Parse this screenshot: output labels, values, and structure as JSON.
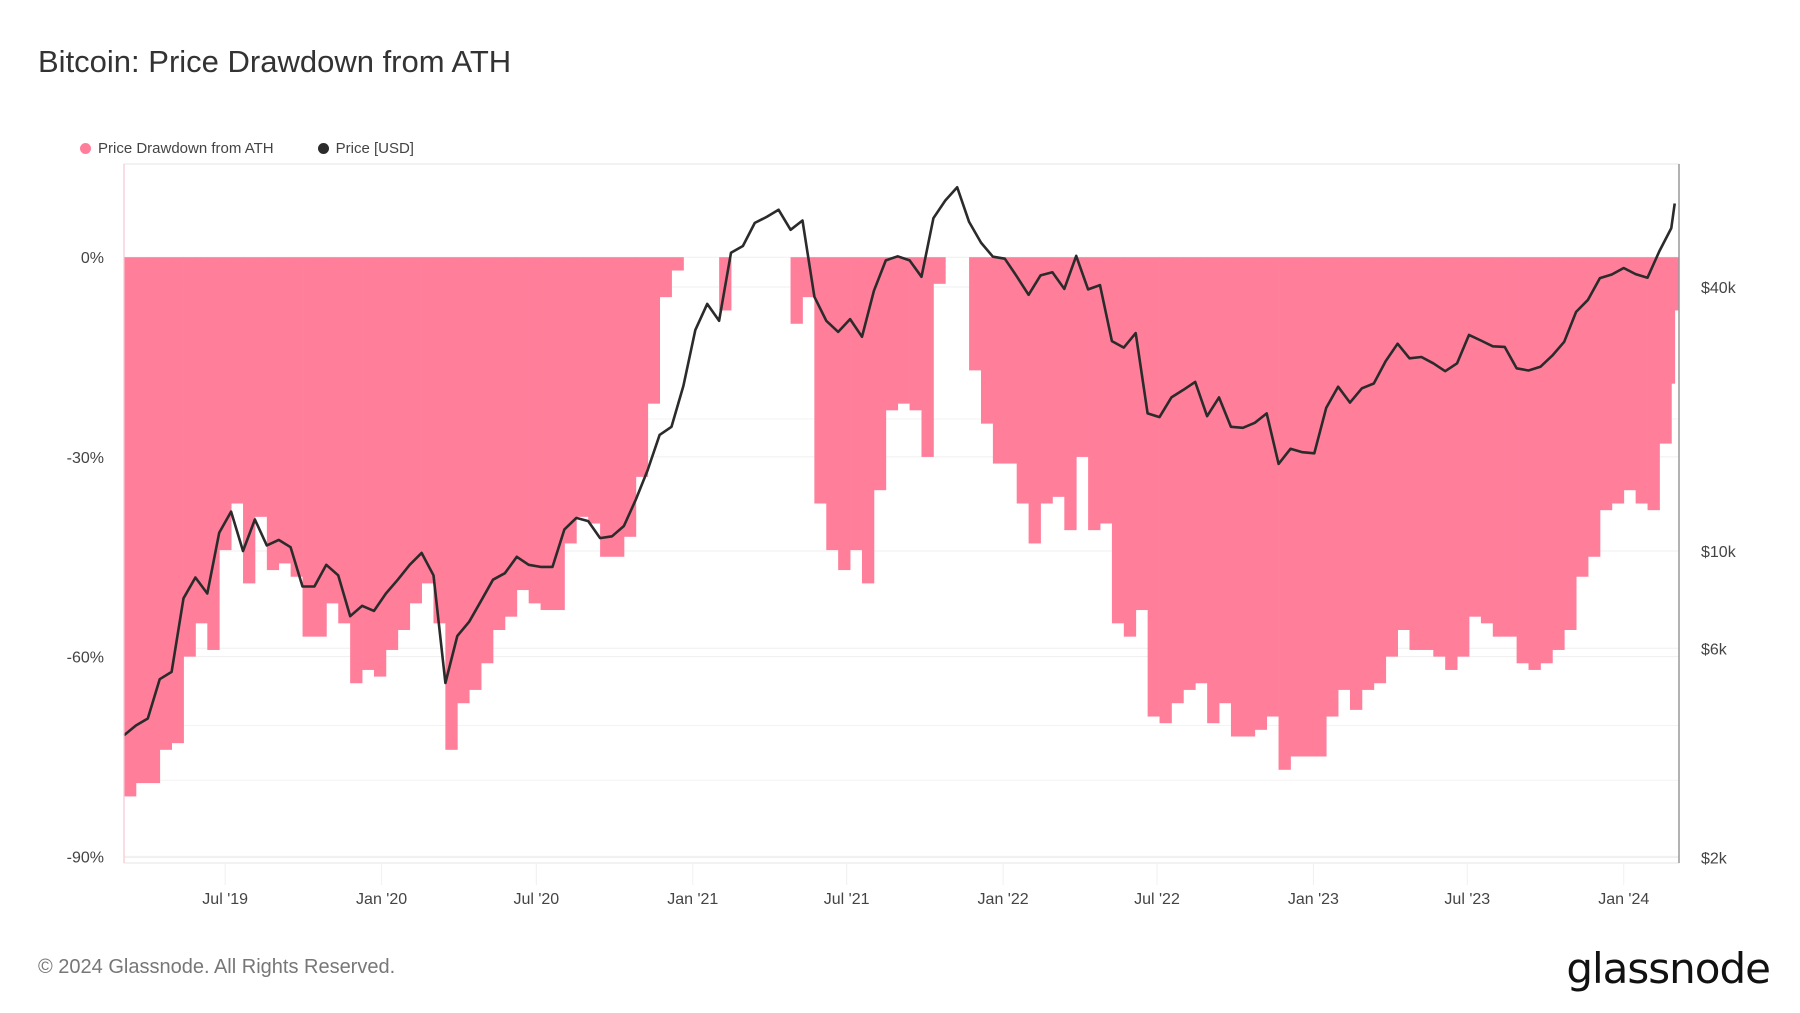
{
  "chart_data": {
    "type": "bar+line",
    "title": "Bitcoin: Price Drawdown from ATH",
    "legend": [
      {
        "name": "Price Drawdown from ATH",
        "color": "#ff7f9b"
      },
      {
        "name": "Price [USD]",
        "color": "#2b2b2b"
      }
    ],
    "legend_position": "top-left",
    "grid": true,
    "xlim": [
      "2019-03-04",
      "2024-03-06"
    ],
    "x_ticks": [
      {
        "date": "2019-07-01",
        "label": "Jul '19"
      },
      {
        "date": "2020-01-01",
        "label": "Jan '20"
      },
      {
        "date": "2020-07-01",
        "label": "Jul '20"
      },
      {
        "date": "2021-01-01",
        "label": "Jan '21"
      },
      {
        "date": "2021-07-01",
        "label": "Jul '21"
      },
      {
        "date": "2022-01-01",
        "label": "Jan '22"
      },
      {
        "date": "2022-07-01",
        "label": "Jul '22"
      },
      {
        "date": "2023-01-01",
        "label": "Jan '23"
      },
      {
        "date": "2023-07-01",
        "label": "Jul '23"
      },
      {
        "date": "2024-01-01",
        "label": "Jan '24"
      }
    ],
    "y_left": {
      "ylim": [
        -91,
        14
      ],
      "ticks": [
        {
          "value": 0,
          "label": "0%"
        },
        {
          "value": -30,
          "label": "-30%"
        },
        {
          "value": -60,
          "label": "-60%"
        },
        {
          "value": -90,
          "label": "-90%"
        }
      ]
    },
    "y_right": {
      "scale": "log",
      "ylim": [
        1943,
        76300
      ],
      "ticks": [
        {
          "value": 40000,
          "label": "$40k"
        },
        {
          "value": 10000,
          "label": "$10k"
        },
        {
          "value": 6000,
          "label": "$6k"
        },
        {
          "value": 2000,
          "label": "$2k"
        }
      ]
    },
    "dates": [
      "2019-03-04",
      "2019-03-18",
      "2019-04-01",
      "2019-04-15",
      "2019-04-29",
      "2019-05-13",
      "2019-05-27",
      "2019-06-10",
      "2019-06-24",
      "2019-07-08",
      "2019-07-22",
      "2019-08-05",
      "2019-08-19",
      "2019-09-02",
      "2019-09-16",
      "2019-09-30",
      "2019-10-14",
      "2019-10-28",
      "2019-11-11",
      "2019-11-25",
      "2019-12-09",
      "2019-12-23",
      "2020-01-06",
      "2020-01-20",
      "2020-02-03",
      "2020-02-17",
      "2020-03-02",
      "2020-03-16",
      "2020-03-30",
      "2020-04-13",
      "2020-04-27",
      "2020-05-11",
      "2020-05-25",
      "2020-06-08",
      "2020-06-22",
      "2020-07-06",
      "2020-07-20",
      "2020-08-03",
      "2020-08-17",
      "2020-08-31",
      "2020-09-14",
      "2020-09-28",
      "2020-10-12",
      "2020-10-26",
      "2020-11-09",
      "2020-11-23",
      "2020-12-07",
      "2020-12-21",
      "2021-01-04",
      "2021-01-18",
      "2021-02-01",
      "2021-02-15",
      "2021-03-01",
      "2021-03-15",
      "2021-03-29",
      "2021-04-12",
      "2021-04-26",
      "2021-05-10",
      "2021-05-24",
      "2021-06-07",
      "2021-06-21",
      "2021-07-05",
      "2021-07-19",
      "2021-08-02",
      "2021-08-16",
      "2021-08-30",
      "2021-09-13",
      "2021-09-27",
      "2021-10-11",
      "2021-10-25",
      "2021-11-08",
      "2021-11-22",
      "2021-12-06",
      "2021-12-20",
      "2022-01-03",
      "2022-01-17",
      "2022-01-31",
      "2022-02-14",
      "2022-02-28",
      "2022-03-14",
      "2022-03-28",
      "2022-04-11",
      "2022-04-25",
      "2022-05-09",
      "2022-05-23",
      "2022-06-06",
      "2022-06-20",
      "2022-07-04",
      "2022-07-18",
      "2022-08-01",
      "2022-08-15",
      "2022-08-29",
      "2022-09-12",
      "2022-09-26",
      "2022-10-10",
      "2022-10-24",
      "2022-11-07",
      "2022-11-21",
      "2022-12-05",
      "2022-12-19",
      "2023-01-02",
      "2023-01-16",
      "2023-01-30",
      "2023-02-13",
      "2023-02-27",
      "2023-03-13",
      "2023-03-27",
      "2023-04-10",
      "2023-04-24",
      "2023-05-08",
      "2023-05-22",
      "2023-06-05",
      "2023-06-19",
      "2023-07-03",
      "2023-07-17",
      "2023-07-31",
      "2023-08-14",
      "2023-08-28",
      "2023-09-11",
      "2023-09-25",
      "2023-10-09",
      "2023-10-23",
      "2023-11-06",
      "2023-11-20",
      "2023-12-04",
      "2023-12-18",
      "2024-01-01",
      "2024-01-15",
      "2024-01-29",
      "2024-02-12",
      "2024-02-26",
      "2024-03-01"
    ],
    "series": [
      {
        "name": "Price Drawdown from ATH",
        "type": "bar",
        "unit": "%",
        "axis": "left",
        "values": [
          -81,
          -79,
          -79,
          -74,
          -73,
          -60,
          -55,
          -59,
          -44,
          -37,
          -49,
          -39,
          -47,
          -46,
          -48,
          -57,
          -57,
          -52,
          -55,
          -64,
          -62,
          -63,
          -59,
          -56,
          -52,
          -49,
          -55,
          -74,
          -67,
          -65,
          -61,
          -56,
          -54,
          -50,
          -52,
          -53,
          -53,
          -43,
          -39,
          -40,
          -45,
          -45,
          -42,
          -33,
          -22,
          -6,
          -2,
          0,
          0,
          0,
          -8,
          0,
          0,
          0,
          0,
          0,
          -10,
          -6,
          -37,
          -44,
          -47,
          -44,
          -49,
          -35,
          -23,
          -22,
          -23,
          -30,
          -4,
          0,
          0,
          -17,
          -25,
          -31,
          -31,
          -37,
          -43,
          -37,
          -36,
          -41,
          -30,
          -41,
          -40,
          -55,
          -57,
          -53,
          -69,
          -70,
          -67,
          -65,
          -64,
          -70,
          -67,
          -72,
          -72,
          -71,
          -69,
          -77,
          -75,
          -75,
          -75,
          -69,
          -65,
          -68,
          -65,
          -64,
          -60,
          -56,
          -59,
          -59,
          -60,
          -62,
          -60,
          -54,
          -55,
          -57,
          -57,
          -61,
          -62,
          -61,
          -59,
          -56,
          -48,
          -45,
          -38,
          -37,
          -35,
          -37,
          -38,
          -28,
          -19,
          -8
        ]
      },
      {
        "name": "Price [USD]",
        "type": "line",
        "unit": "USD",
        "axis": "right",
        "values": [
          3800,
          4000,
          4150,
          5100,
          5300,
          7800,
          8700,
          8000,
          11000,
          12300,
          10000,
          11800,
          10300,
          10600,
          10200,
          8300,
          8300,
          9300,
          8800,
          7100,
          7500,
          7300,
          8000,
          8600,
          9300,
          9900,
          8800,
          5000,
          6400,
          6900,
          7700,
          8600,
          8900,
          9700,
          9300,
          9200,
          9200,
          11200,
          11900,
          11700,
          10700,
          10800,
          11400,
          13100,
          15300,
          18400,
          19200,
          23800,
          31900,
          36600,
          33500,
          47900,
          49600,
          56000,
          57800,
          60000,
          54000,
          56700,
          38000,
          33500,
          31600,
          33800,
          30800,
          39200,
          46000,
          47000,
          46000,
          42200,
          57400,
          63000,
          67500,
          56300,
          50500,
          46900,
          46400,
          42300,
          38400,
          42500,
          43200,
          39600,
          47100,
          39500,
          40400,
          30100,
          29100,
          31400,
          20600,
          20200,
          22400,
          23300,
          24300,
          20300,
          22400,
          19200,
          19100,
          19600,
          20600,
          15800,
          17100,
          16800,
          16700,
          21200,
          23700,
          21800,
          23500,
          24100,
          27100,
          29700,
          27500,
          27700,
          26800,
          25700,
          26800,
          31100,
          30200,
          29300,
          29200,
          26100,
          25800,
          26300,
          27900,
          30000,
          35100,
          37400,
          41900,
          42700,
          44200,
          42800,
          42000,
          48300,
          54500,
          62000
        ]
      }
    ]
  },
  "footer": {
    "copyright": "© 2024 Glassnode. All Rights Reserved.",
    "logo": "glassnode"
  }
}
